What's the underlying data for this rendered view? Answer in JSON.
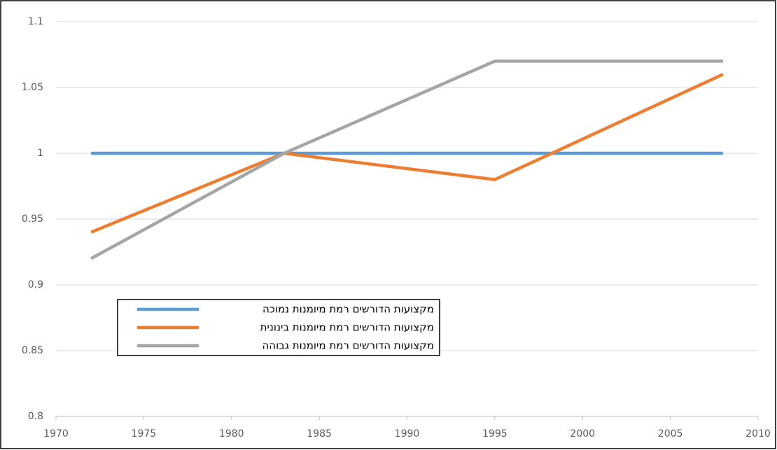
{
  "chart_data": {
    "type": "line",
    "x": [
      1972,
      1983,
      1995,
      2008
    ],
    "series": [
      {
        "name": "מקצועות הדורשים רמת מיומנות נמוכה",
        "color": "#5b9bd5",
        "values": [
          1,
          1,
          1,
          1
        ]
      },
      {
        "name": "מקצועות הדורשים רמת מיומנות בינונית",
        "color": "#ed7d31",
        "values": [
          0.94,
          1,
          0.98,
          1.06
        ]
      },
      {
        "name": "מקצועות הדורשים רמת מיומנות גבוהה",
        "color": "#a5a5a5",
        "values": [
          0.92,
          1,
          1.07,
          1.07
        ]
      }
    ],
    "xlim": [
      1970,
      2010
    ],
    "xticks": [
      1970,
      1975,
      1980,
      1985,
      1990,
      1995,
      2000,
      2005,
      2010
    ],
    "ylim": [
      0.8,
      1.1
    ],
    "yticks": [
      0.8,
      0.85,
      0.9,
      0.95,
      1,
      1.05,
      1.1
    ],
    "grid": true
  }
}
